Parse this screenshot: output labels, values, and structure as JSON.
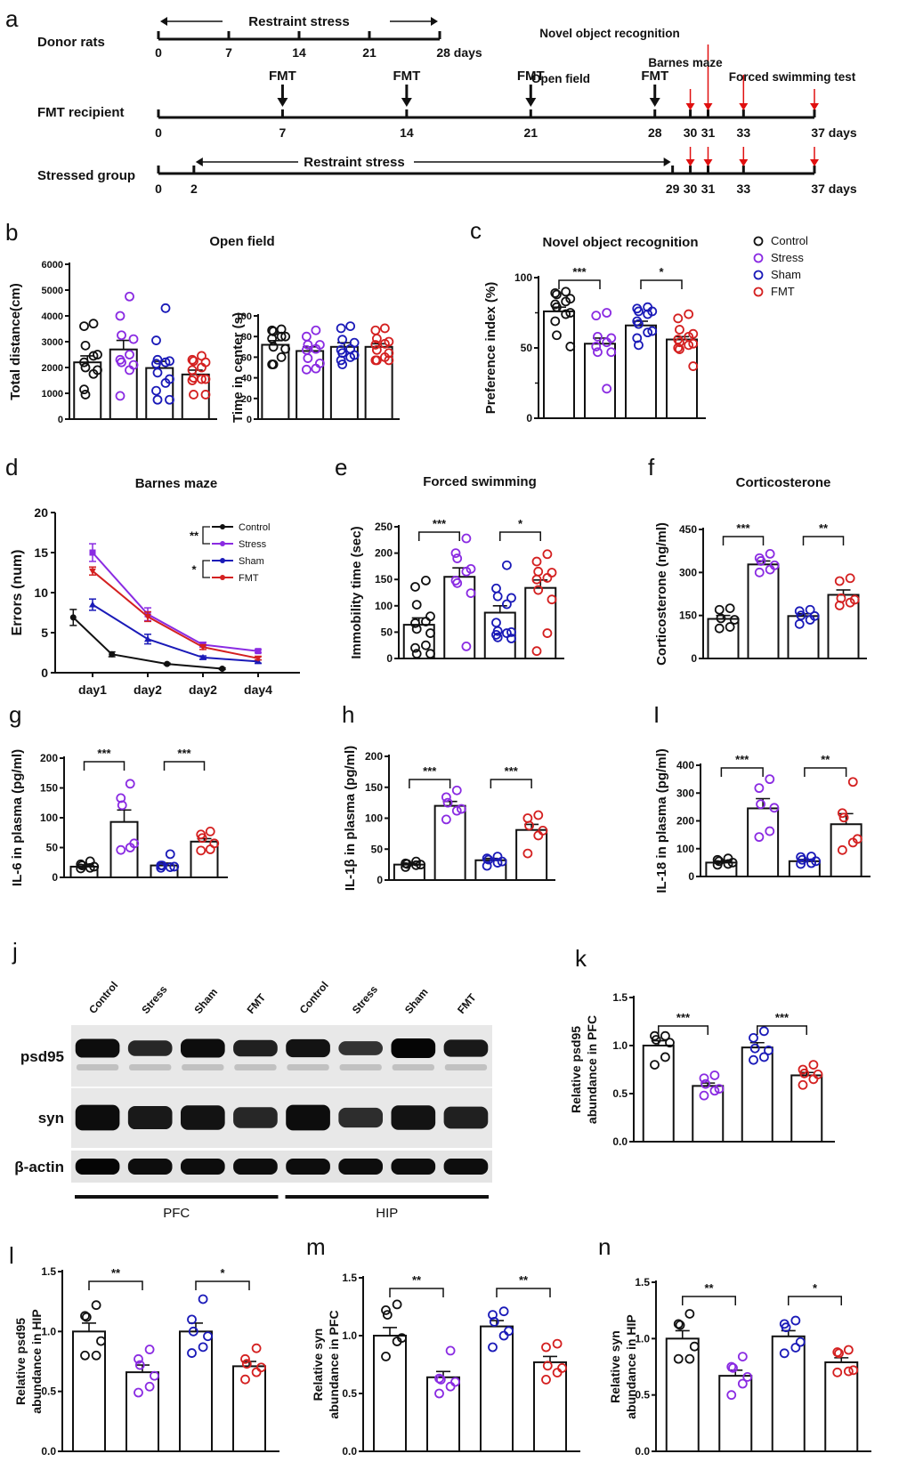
{
  "colors": {
    "Control": "#111111",
    "Stress": "#8a2be2",
    "Sham": "#1a1ab8",
    "FMT": "#d42020",
    "arrow_red": "#e01010"
  },
  "panel_letters": [
    "a",
    "b",
    "c",
    "d",
    "e",
    "f",
    "g",
    "h",
    "I",
    "j",
    "k",
    "l",
    "m",
    "n"
  ],
  "timeline": {
    "rows": [
      {
        "label": "Donor rats",
        "ticks": [
          0,
          7,
          14,
          21,
          28
        ],
        "unit_label": "28 days",
        "range_label": "Restraint stress"
      },
      {
        "label": "FMT recipient",
        "ticks": [
          0,
          7,
          14,
          21,
          28,
          30,
          31,
          33,
          37
        ],
        "end_label": "37 days",
        "fmt_days": [
          7,
          14,
          21,
          28
        ],
        "fmt_label": "FMT"
      },
      {
        "label": "Stressed group",
        "ticks": [
          0,
          2,
          29,
          30,
          31,
          33,
          37
        ],
        "end_label": "37 days",
        "range_label": "Restraint stress"
      }
    ],
    "tests": [
      {
        "label": "Open field",
        "day": 30
      },
      {
        "label": "Novel object recognition",
        "day": 31
      },
      {
        "label": "Barnes maze",
        "day": 33
      },
      {
        "label": "Forced swimming test",
        "day": 37
      }
    ]
  },
  "legend": {
    "items": [
      "Control",
      "Stress",
      "Sham",
      "FMT"
    ]
  },
  "chart_data": [
    {
      "id": "b1",
      "type": "bar",
      "title": "Open field",
      "ylabel": "Total distance(cm)",
      "ylim": [
        0,
        6000
      ],
      "yticks": [
        0,
        1000,
        2000,
        3000,
        4000,
        5000,
        6000
      ],
      "categories": [
        "Control",
        "Stress",
        "Sham",
        "FMT"
      ],
      "values": [
        2200,
        2700,
        1980,
        1730
      ],
      "errors": [
        250,
        350,
        260,
        170
      ],
      "points": [
        [
          3700,
          3600,
          2850,
          2500,
          2450,
          2200,
          2000,
          1900,
          1750,
          1150,
          950
        ],
        [
          4750,
          4000,
          3250,
          3100,
          2500,
          2300,
          2200,
          2100,
          1900,
          900
        ],
        [
          4300,
          3050,
          2300,
          2250,
          2200,
          2150,
          1800,
          1550,
          1400,
          1100,
          750,
          750
        ],
        [
          2450,
          2300,
          2250,
          2200,
          2000,
          1900,
          1600,
          1550,
          1550,
          1500,
          950,
          950
        ]
      ],
      "sig": []
    },
    {
      "id": "b2",
      "type": "bar",
      "title": "",
      "ylabel": "Time in center (s)",
      "ylim": [
        0,
        100
      ],
      "yticks": [
        0,
        20,
        40,
        60,
        80,
        100
      ],
      "categories": [
        "Control",
        "Stress",
        "Sham",
        "FMT"
      ],
      "values": [
        72,
        66,
        70,
        70
      ],
      "errors": [
        4,
        4,
        4,
        3
      ],
      "points": [
        [
          87,
          86,
          85,
          80,
          80,
          78,
          70,
          68,
          60,
          53,
          53
        ],
        [
          86,
          80,
          72,
          72,
          68,
          67,
          59,
          54,
          49,
          48
        ],
        [
          90,
          88,
          77,
          74,
          68,
          67,
          64,
          62,
          60,
          57,
          53
        ],
        [
          88,
          86,
          78,
          75,
          73,
          72,
          67,
          64,
          60,
          57,
          57,
          57
        ]
      ],
      "sig": []
    },
    {
      "id": "c",
      "type": "bar",
      "title": "Novel object recognition",
      "ylabel": "Preference index (%)",
      "ylim": [
        0,
        100
      ],
      "yticks": [
        0,
        50,
        100
      ],
      "categories": [
        "Control",
        "Stress",
        "Sham",
        "FMT"
      ],
      "values": [
        76,
        53,
        66,
        56
      ],
      "errors": [
        3,
        4,
        3,
        2
      ],
      "points": [
        [
          90,
          89,
          88,
          85,
          83,
          81,
          79,
          75,
          74,
          69,
          59,
          51
        ],
        [
          75,
          73,
          58,
          57,
          54,
          51,
          47,
          47,
          21
        ],
        [
          79,
          78,
          76,
          76,
          74,
          69,
          67,
          62,
          61,
          57,
          52
        ],
        [
          74,
          71,
          63,
          60,
          58,
          56,
          54,
          53,
          52,
          50,
          49,
          37
        ]
      ],
      "sig": [
        {
          "from": 0,
          "to": 1,
          "label": "***"
        },
        {
          "from": 2,
          "to": 3,
          "label": "*"
        }
      ]
    },
    {
      "id": "d",
      "type": "line",
      "title": "Barnes maze",
      "ylabel": "Errors (num)",
      "ylim": [
        0,
        20
      ],
      "yticks": [
        0,
        5,
        10,
        15,
        20
      ],
      "categories": [
        "day1",
        "day2",
        "day2",
        "day4"
      ],
      "series": [
        {
          "name": "Control",
          "marker": "circle",
          "x": [
            -0.35,
            0.35,
            1.35,
            2.35
          ],
          "values": [
            6.9,
            2.3,
            1.1,
            0.5
          ],
          "errors": [
            1.0,
            0.3,
            0.1,
            0.1
          ]
        },
        {
          "name": "Stress",
          "marker": "square",
          "x": [
            0,
            1,
            2,
            3
          ],
          "values": [
            15.0,
            7.3,
            3.5,
            2.7
          ],
          "errors": [
            1.1,
            0.8,
            0.3,
            0.2
          ]
        },
        {
          "name": "Sham",
          "marker": "triangle-up",
          "x": [
            0,
            1,
            2,
            3
          ],
          "values": [
            8.5,
            4.2,
            1.9,
            1.4
          ],
          "errors": [
            0.7,
            0.6,
            0.2,
            0.2
          ]
        },
        {
          "name": "FMT",
          "marker": "triangle-down",
          "x": [
            0,
            1,
            2,
            3
          ],
          "values": [
            12.7,
            7.0,
            3.2,
            1.8
          ],
          "errors": [
            0.5,
            0.6,
            0.3,
            0.2
          ]
        }
      ],
      "legend_sig": [
        {
          "label": "**",
          "pair": [
            "Control",
            "Stress"
          ]
        },
        {
          "label": "*",
          "pair": [
            "Sham",
            "FMT"
          ]
        }
      ]
    },
    {
      "id": "e",
      "type": "bar",
      "title": "Forced swimming",
      "ylabel": "Immobility time (sec)",
      "ylim": [
        0,
        250
      ],
      "yticks": [
        0,
        50,
        100,
        150,
        200,
        250
      ],
      "categories": [
        "Control",
        "Stress",
        "Sham",
        "FMT"
      ],
      "values": [
        64,
        155,
        87,
        134
      ],
      "errors": [
        13,
        17,
        13,
        15
      ],
      "points": [
        [
          148,
          136,
          102,
          80,
          70,
          67,
          56,
          48,
          25,
          20,
          9,
          9
        ],
        [
          228,
          200,
          190,
          170,
          165,
          148,
          143,
          124,
          23
        ],
        [
          177,
          133,
          118,
          115,
          103,
          68,
          52,
          50,
          48,
          45,
          40,
          38
        ],
        [
          198,
          184,
          165,
          163,
          153,
          150,
          130,
          112,
          48,
          14
        ]
      ],
      "sig": [
        {
          "from": 0,
          "to": 1,
          "label": "***"
        },
        {
          "from": 2,
          "to": 3,
          "label": "*"
        }
      ]
    },
    {
      "id": "f",
      "type": "bar",
      "title": "Corticosterone",
      "ylabel": "Corticosterone (ng/ml)",
      "ylim": [
        0,
        450
      ],
      "yticks": [
        0,
        150,
        300,
        450
      ],
      "categories": [
        "Control",
        "Stress",
        "Sham",
        "FMT"
      ],
      "values": [
        138,
        328,
        148,
        222
      ],
      "errors": [
        12,
        12,
        8,
        17
      ],
      "points": [
        [
          175,
          170,
          140,
          135,
          110,
          105
        ],
        [
          365,
          350,
          340,
          325,
          310,
          300
        ],
        [
          170,
          165,
          150,
          148,
          135,
          120
        ],
        [
          280,
          270,
          210,
          205,
          195,
          185
        ]
      ],
      "sig": [
        {
          "from": 0,
          "to": 1,
          "label": "***"
        },
        {
          "from": 2,
          "to": 3,
          "label": "**"
        }
      ]
    },
    {
      "id": "g",
      "type": "bar",
      "title": "",
      "ylabel": "IL-6 in plasma (pg/ml)",
      "ylim": [
        0,
        200
      ],
      "yticks": [
        0,
        50,
        100,
        150,
        200
      ],
      "categories": [
        "Control",
        "Stress",
        "Sham",
        "FMT"
      ],
      "values": [
        18,
        93,
        20,
        60
      ],
      "errors": [
        3,
        20,
        4,
        5
      ],
      "points": [
        [
          27,
          22,
          20,
          18,
          16,
          15
        ],
        [
          157,
          133,
          121,
          57,
          50,
          46
        ],
        [
          39,
          20,
          20,
          18,
          17,
          16
        ],
        [
          77,
          72,
          66,
          57,
          47,
          45
        ]
      ],
      "sig": [
        {
          "from": 0,
          "to": 1,
          "label": "***"
        },
        {
          "from": 2,
          "to": 3,
          "label": "***"
        }
      ]
    },
    {
      "id": "h",
      "type": "bar",
      "title": "",
      "ylabel": "IL-1β in plasma (pg/ml)",
      "ylim": [
        0,
        200
      ],
      "yticks": [
        0,
        50,
        100,
        150,
        200
      ],
      "categories": [
        "Control",
        "Stress",
        "Sham",
        "FMT"
      ],
      "values": [
        25,
        120,
        32,
        81
      ],
      "errors": [
        2,
        7,
        3,
        9
      ],
      "points": [
        [
          30,
          27,
          26,
          25,
          24,
          21
        ],
        [
          145,
          134,
          125,
          115,
          112,
          98
        ],
        [
          38,
          35,
          33,
          30,
          28,
          23
        ],
        [
          105,
          100,
          88,
          80,
          72,
          43
        ]
      ],
      "sig": [
        {
          "from": 0,
          "to": 1,
          "label": "***"
        },
        {
          "from": 2,
          "to": 3,
          "label": "***"
        }
      ]
    },
    {
      "id": "i",
      "type": "bar",
      "title": "",
      "ylabel": "IL-18 in plasma (pg/ml)",
      "ylim": [
        0,
        400
      ],
      "yticks": [
        0,
        100,
        200,
        300,
        400
      ],
      "categories": [
        "Control",
        "Stress",
        "Sham",
        "FMT"
      ],
      "values": [
        50,
        245,
        55,
        188
      ],
      "errors": [
        5,
        35,
        6,
        38
      ],
      "points": [
        [
          65,
          60,
          55,
          50,
          45,
          42
        ],
        [
          350,
          318,
          260,
          247,
          163,
          142
        ],
        [
          72,
          70,
          60,
          55,
          48,
          45
        ],
        [
          340,
          228,
          212,
          135,
          122,
          95
        ]
      ],
      "sig": [
        {
          "from": 0,
          "to": 1,
          "label": "***"
        },
        {
          "from": 2,
          "to": 3,
          "label": "**"
        }
      ]
    },
    {
      "id": "k",
      "type": "bar",
      "title": "",
      "ylabel": "Relative psd95\nabundance in PFC",
      "ylim": [
        0,
        1.5
      ],
      "yticks": [
        0.0,
        0.5,
        1.0,
        1.5
      ],
      "categories": [
        "Control",
        "Stress",
        "Sham",
        "FMT"
      ],
      "values": [
        1.0,
        0.58,
        0.98,
        0.69
      ],
      "errors": [
        0.05,
        0.03,
        0.05,
        0.03
      ],
      "points": [
        [
          1.1,
          1.1,
          1.06,
          1.03,
          0.88,
          0.8
        ],
        [
          0.69,
          0.66,
          0.6,
          0.55,
          0.53,
          0.48
        ],
        [
          1.15,
          1.08,
          0.97,
          0.95,
          0.88,
          0.85
        ],
        [
          0.8,
          0.75,
          0.71,
          0.7,
          0.65,
          0.59
        ]
      ],
      "sig": [
        {
          "from": 0,
          "to": 1,
          "label": "***"
        },
        {
          "from": 2,
          "to": 3,
          "label": "***"
        }
      ]
    },
    {
      "id": "l",
      "type": "bar",
      "title": "",
      "ylabel": "Relative psd95\nabundance in HIP",
      "ylim": [
        0,
        1.5
      ],
      "yticks": [
        0.0,
        0.5,
        1.0,
        1.5
      ],
      "categories": [
        "Control",
        "Stress",
        "Sham",
        "FMT"
      ],
      "values": [
        1.0,
        0.66,
        1.0,
        0.71
      ],
      "errors": [
        0.07,
        0.06,
        0.07,
        0.04
      ],
      "points": [
        [
          1.22,
          1.13,
          1.12,
          0.92,
          0.8,
          0.8
        ],
        [
          0.85,
          0.77,
          0.72,
          0.63,
          0.54,
          0.49
        ],
        [
          1.27,
          1.1,
          1.0,
          0.96,
          0.87,
          0.82
        ],
        [
          0.86,
          0.77,
          0.73,
          0.7,
          0.66,
          0.6
        ]
      ],
      "sig": [
        {
          "from": 0,
          "to": 1,
          "label": "**"
        },
        {
          "from": 2,
          "to": 3,
          "label": "*"
        }
      ]
    },
    {
      "id": "m",
      "type": "bar",
      "title": "",
      "ylabel": "Relative syn\nabundance in PFC",
      "ylim": [
        0,
        1.5
      ],
      "yticks": [
        0.0,
        0.5,
        1.0,
        1.5
      ],
      "categories": [
        "Control",
        "Stress",
        "Sham",
        "FMT"
      ],
      "values": [
        1.0,
        0.64,
        1.08,
        0.77
      ],
      "errors": [
        0.07,
        0.05,
        0.05,
        0.05
      ],
      "points": [
        [
          1.27,
          1.22,
          1.18,
          0.98,
          0.95,
          0.82
        ],
        [
          0.87,
          0.63,
          0.62,
          0.6,
          0.56,
          0.5
        ],
        [
          1.21,
          1.18,
          1.12,
          1.04,
          1.0,
          0.9
        ],
        [
          0.93,
          0.9,
          0.74,
          0.72,
          0.68,
          0.62
        ]
      ],
      "sig": [
        {
          "from": 0,
          "to": 1,
          "label": "**"
        },
        {
          "from": 2,
          "to": 3,
          "label": "**"
        }
      ]
    },
    {
      "id": "n",
      "type": "bar",
      "title": "",
      "ylabel": "Relative syn\nabundance in HIP",
      "ylim": [
        0,
        1.5
      ],
      "yticks": [
        0.0,
        0.5,
        1.0,
        1.5
      ],
      "categories": [
        "Control",
        "Stress",
        "Sham",
        "FMT"
      ],
      "values": [
        1.0,
        0.67,
        1.02,
        0.79
      ],
      "errors": [
        0.07,
        0.05,
        0.05,
        0.04
      ],
      "points": [
        [
          1.22,
          1.13,
          1.12,
          0.93,
          0.82,
          0.82
        ],
        [
          0.84,
          0.75,
          0.74,
          0.66,
          0.6,
          0.5
        ],
        [
          1.16,
          1.13,
          1.1,
          0.97,
          0.92,
          0.87
        ],
        [
          0.9,
          0.88,
          0.87,
          0.72,
          0.71,
          0.7
        ]
      ],
      "sig": [
        {
          "from": 0,
          "to": 1,
          "label": "**"
        },
        {
          "from": 2,
          "to": 3,
          "label": "*"
        }
      ]
    }
  ],
  "western_blot": {
    "lane_labels": [
      "Control",
      "Stress",
      "Sham",
      "FMT",
      "Control",
      "Stress",
      "Sham",
      "FMT"
    ],
    "rows": [
      {
        "label": "psd95",
        "intensity": [
          0.95,
          0.75,
          0.95,
          0.8,
          0.9,
          0.65,
          1.0,
          0.85
        ]
      },
      {
        "label": "syn",
        "intensity": [
          0.95,
          0.85,
          0.9,
          0.75,
          0.95,
          0.7,
          0.9,
          0.8
        ]
      },
      {
        "label": "β-actin",
        "intensity": [
          1,
          0.95,
          0.95,
          0.95,
          0.95,
          0.95,
          0.95,
          0.95
        ]
      }
    ],
    "groups": [
      {
        "label": "PFC",
        "lanes": [
          0,
          3
        ]
      },
      {
        "label": "HIP",
        "lanes": [
          4,
          7
        ]
      }
    ]
  }
}
